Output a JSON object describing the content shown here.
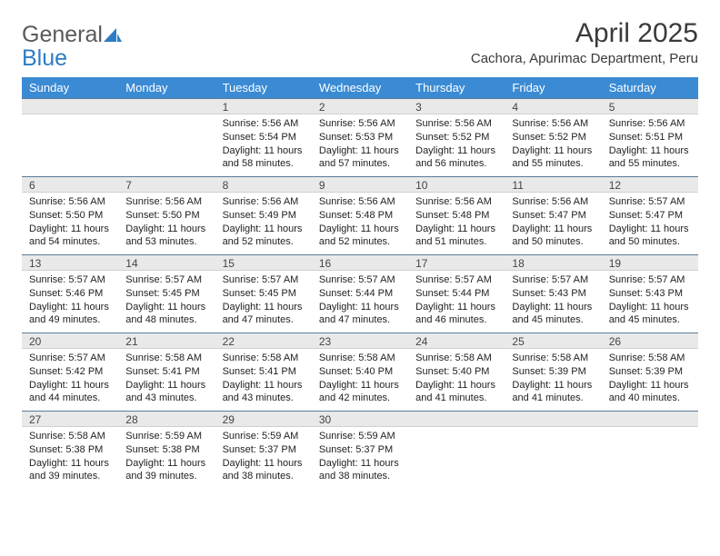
{
  "logo": {
    "word1": "General",
    "word2": "Blue"
  },
  "title": "April 2025",
  "subtitle": "Cachora, Apurimac Department, Peru",
  "colors": {
    "header_bg": "#3b8bd4",
    "header_text": "#ffffff",
    "daynum_bg": "#e9e9e9",
    "daynum_border_top": "#5c7a99",
    "logo_gray": "#5a5a5a",
    "logo_blue": "#2e7cc4"
  },
  "weekdays": [
    "Sunday",
    "Monday",
    "Tuesday",
    "Wednesday",
    "Thursday",
    "Friday",
    "Saturday"
  ],
  "labels": {
    "sunrise": "Sunrise:",
    "sunset": "Sunset:",
    "daylight": "Daylight:"
  },
  "weeks": [
    [
      null,
      null,
      {
        "n": "1",
        "sunrise": "5:56 AM",
        "sunset": "5:54 PM",
        "daylight": "11 hours and 58 minutes."
      },
      {
        "n": "2",
        "sunrise": "5:56 AM",
        "sunset": "5:53 PM",
        "daylight": "11 hours and 57 minutes."
      },
      {
        "n": "3",
        "sunrise": "5:56 AM",
        "sunset": "5:52 PM",
        "daylight": "11 hours and 56 minutes."
      },
      {
        "n": "4",
        "sunrise": "5:56 AM",
        "sunset": "5:52 PM",
        "daylight": "11 hours and 55 minutes."
      },
      {
        "n": "5",
        "sunrise": "5:56 AM",
        "sunset": "5:51 PM",
        "daylight": "11 hours and 55 minutes."
      }
    ],
    [
      {
        "n": "6",
        "sunrise": "5:56 AM",
        "sunset": "5:50 PM",
        "daylight": "11 hours and 54 minutes."
      },
      {
        "n": "7",
        "sunrise": "5:56 AM",
        "sunset": "5:50 PM",
        "daylight": "11 hours and 53 minutes."
      },
      {
        "n": "8",
        "sunrise": "5:56 AM",
        "sunset": "5:49 PM",
        "daylight": "11 hours and 52 minutes."
      },
      {
        "n": "9",
        "sunrise": "5:56 AM",
        "sunset": "5:48 PM",
        "daylight": "11 hours and 52 minutes."
      },
      {
        "n": "10",
        "sunrise": "5:56 AM",
        "sunset": "5:48 PM",
        "daylight": "11 hours and 51 minutes."
      },
      {
        "n": "11",
        "sunrise": "5:56 AM",
        "sunset": "5:47 PM",
        "daylight": "11 hours and 50 minutes."
      },
      {
        "n": "12",
        "sunrise": "5:57 AM",
        "sunset": "5:47 PM",
        "daylight": "11 hours and 50 minutes."
      }
    ],
    [
      {
        "n": "13",
        "sunrise": "5:57 AM",
        "sunset": "5:46 PM",
        "daylight": "11 hours and 49 minutes."
      },
      {
        "n": "14",
        "sunrise": "5:57 AM",
        "sunset": "5:45 PM",
        "daylight": "11 hours and 48 minutes."
      },
      {
        "n": "15",
        "sunrise": "5:57 AM",
        "sunset": "5:45 PM",
        "daylight": "11 hours and 47 minutes."
      },
      {
        "n": "16",
        "sunrise": "5:57 AM",
        "sunset": "5:44 PM",
        "daylight": "11 hours and 47 minutes."
      },
      {
        "n": "17",
        "sunrise": "5:57 AM",
        "sunset": "5:44 PM",
        "daylight": "11 hours and 46 minutes."
      },
      {
        "n": "18",
        "sunrise": "5:57 AM",
        "sunset": "5:43 PM",
        "daylight": "11 hours and 45 minutes."
      },
      {
        "n": "19",
        "sunrise": "5:57 AM",
        "sunset": "5:43 PM",
        "daylight": "11 hours and 45 minutes."
      }
    ],
    [
      {
        "n": "20",
        "sunrise": "5:57 AM",
        "sunset": "5:42 PM",
        "daylight": "11 hours and 44 minutes."
      },
      {
        "n": "21",
        "sunrise": "5:58 AM",
        "sunset": "5:41 PM",
        "daylight": "11 hours and 43 minutes."
      },
      {
        "n": "22",
        "sunrise": "5:58 AM",
        "sunset": "5:41 PM",
        "daylight": "11 hours and 43 minutes."
      },
      {
        "n": "23",
        "sunrise": "5:58 AM",
        "sunset": "5:40 PM",
        "daylight": "11 hours and 42 minutes."
      },
      {
        "n": "24",
        "sunrise": "5:58 AM",
        "sunset": "5:40 PM",
        "daylight": "11 hours and 41 minutes."
      },
      {
        "n": "25",
        "sunrise": "5:58 AM",
        "sunset": "5:39 PM",
        "daylight": "11 hours and 41 minutes."
      },
      {
        "n": "26",
        "sunrise": "5:58 AM",
        "sunset": "5:39 PM",
        "daylight": "11 hours and 40 minutes."
      }
    ],
    [
      {
        "n": "27",
        "sunrise": "5:58 AM",
        "sunset": "5:38 PM",
        "daylight": "11 hours and 39 minutes."
      },
      {
        "n": "28",
        "sunrise": "5:59 AM",
        "sunset": "5:38 PM",
        "daylight": "11 hours and 39 minutes."
      },
      {
        "n": "29",
        "sunrise": "5:59 AM",
        "sunset": "5:37 PM",
        "daylight": "11 hours and 38 minutes."
      },
      {
        "n": "30",
        "sunrise": "5:59 AM",
        "sunset": "5:37 PM",
        "daylight": "11 hours and 38 minutes."
      },
      null,
      null,
      null
    ]
  ]
}
